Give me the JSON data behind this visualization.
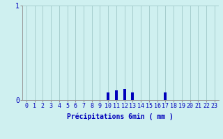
{
  "hours": [
    0,
    1,
    2,
    3,
    4,
    5,
    6,
    7,
    8,
    9,
    10,
    11,
    12,
    13,
    14,
    15,
    16,
    17,
    18,
    19,
    20,
    21,
    22,
    23
  ],
  "values": [
    0,
    0,
    0,
    0,
    0,
    0,
    0,
    0,
    0,
    0,
    0.08,
    0.1,
    0.12,
    0.08,
    0,
    0,
    0,
    0.08,
    0,
    0,
    0,
    0,
    0,
    0
  ],
  "bar_color": "#0000bb",
  "background_color": "#cff0f0",
  "grid_color": "#a0c8c8",
  "axis_color": "#999999",
  "text_color": "#0000bb",
  "xlabel": "Précipitations 6min ( mm )",
  "ylim": [
    0,
    1.0
  ],
  "xlim": [
    -0.5,
    23.5
  ],
  "ytick_vals": [
    0,
    1
  ],
  "ytick_labels": [
    "0",
    "1"
  ],
  "xticks": [
    0,
    1,
    2,
    3,
    4,
    5,
    6,
    7,
    8,
    9,
    10,
    11,
    12,
    13,
    14,
    15,
    16,
    17,
    18,
    19,
    20,
    21,
    22,
    23
  ],
  "bar_width": 0.35,
  "label_fontsize": 7,
  "tick_fontsize": 6
}
